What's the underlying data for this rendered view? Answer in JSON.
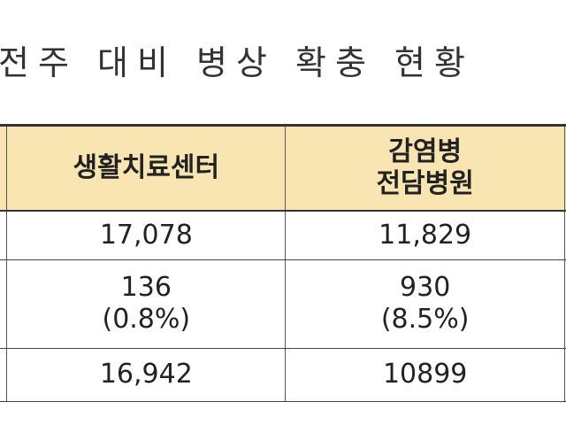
{
  "title": "전주 대비 병상 확충 현황",
  "table": {
    "header": [
      [
        "생활치료센터"
      ],
      [
        "감염병",
        "전담병원"
      ]
    ],
    "rows": [
      [
        [
          "17,078"
        ],
        [
          "11,829"
        ]
      ],
      [
        [
          "136",
          "(0.8%)"
        ],
        [
          "930",
          "(8.5%)"
        ]
      ],
      [
        [
          "16,942"
        ],
        [
          "10899"
        ]
      ]
    ]
  }
}
